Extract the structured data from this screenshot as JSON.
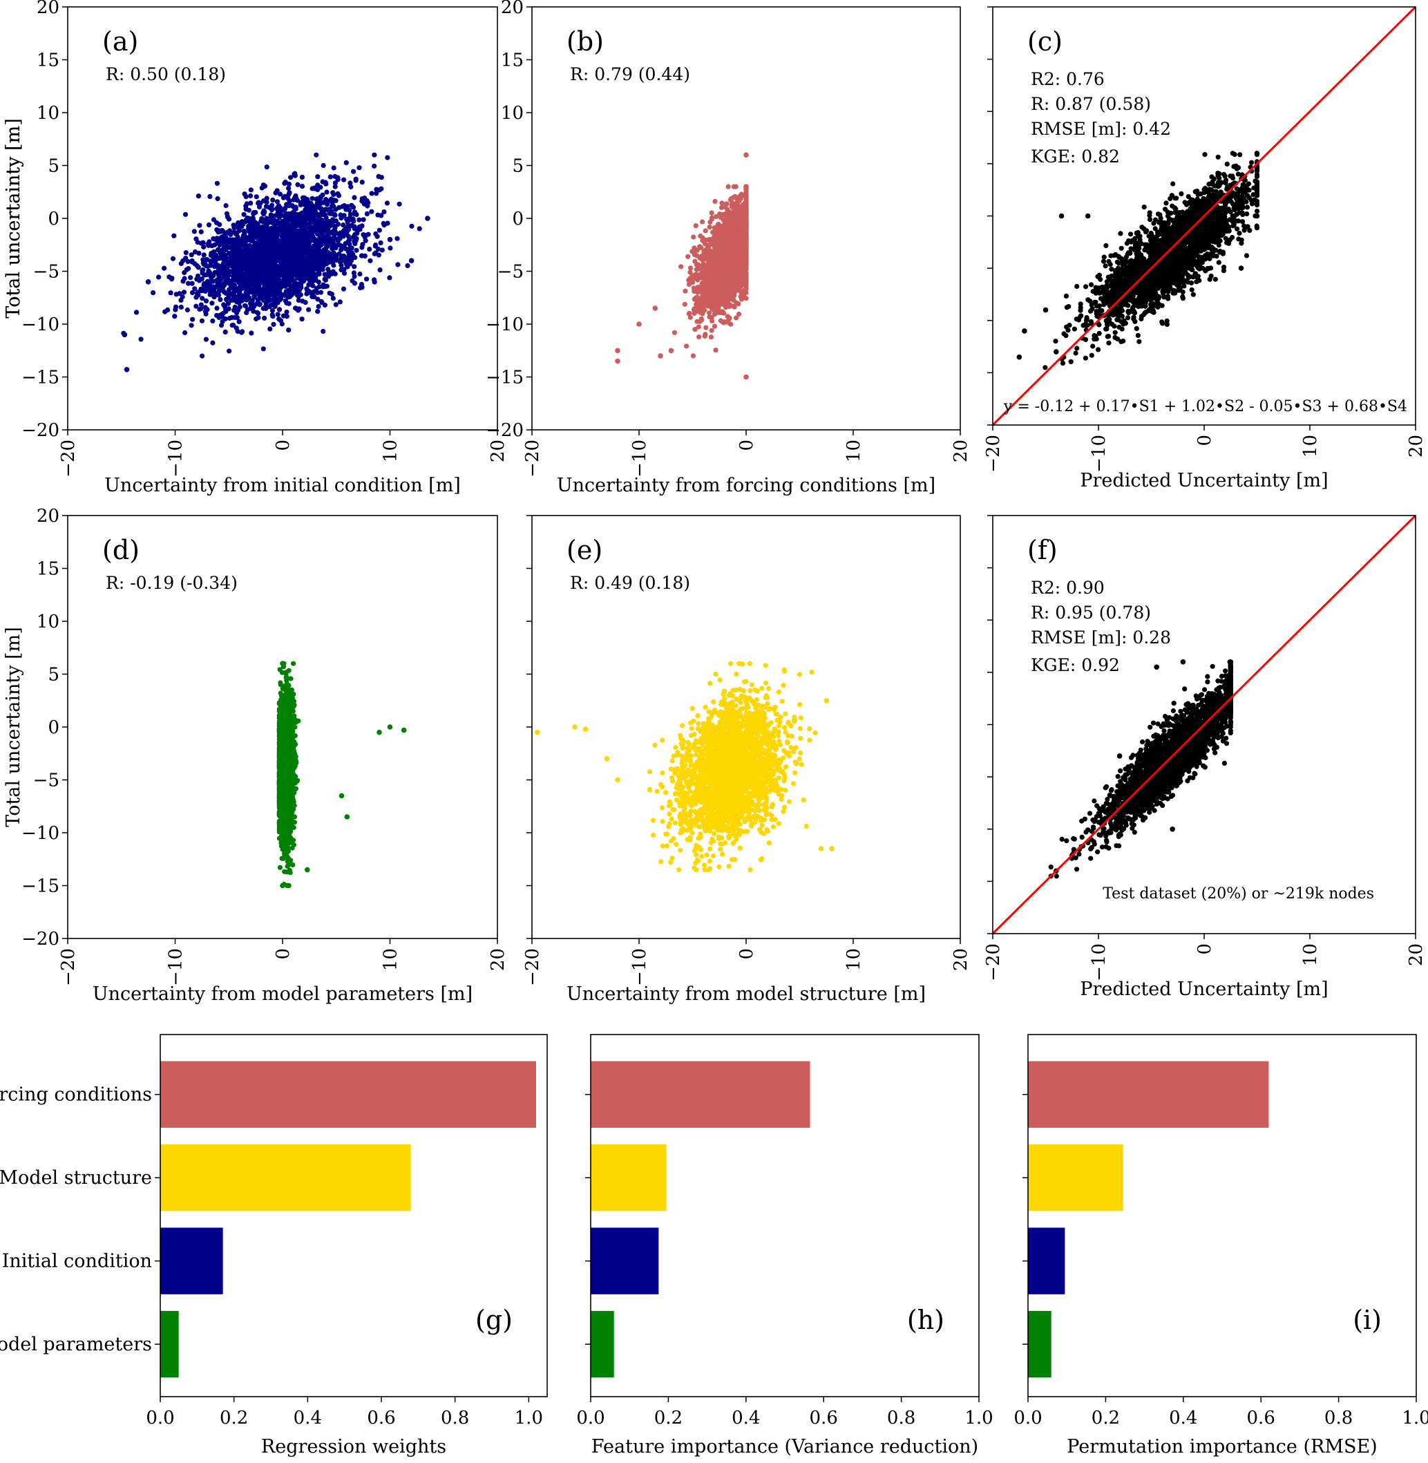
{
  "figure": {
    "yaxis_label": "Total uncertainty [m]"
  },
  "colors": {
    "initial_condition": "#00008b",
    "forcing_conditions": "#cd5c5c",
    "model_parameters": "#008000",
    "model_structure": "#ffd700",
    "prediction": "#000000",
    "identity_line": "#ff0000"
  },
  "chart_data": [
    {
      "id": "a",
      "type": "scatter",
      "panel_label": "(a)",
      "xlabel": "Uncertainty from initial condition [m]",
      "ylabel": "Total uncertainty [m]",
      "xlim": [
        -20,
        20
      ],
      "ylim": [
        -20,
        20
      ],
      "xticks": [
        "−20",
        "−10",
        "0",
        "10",
        "20"
      ],
      "yticks": [
        "20",
        "15",
        "10",
        "5",
        "0",
        "−5",
        "−10",
        "−15",
        "−20"
      ],
      "annotations": [
        "R: 0.50  (0.18)"
      ],
      "color": "#00008b",
      "cloud": {
        "center": [
          -0.5,
          -3.5
        ],
        "spread": [
          3.8,
          2.8
        ],
        "corr": 0.4,
        "y_range": [
          -15,
          6
        ],
        "x_range": [
          -15,
          14
        ]
      },
      "outliers": [
        [
          13.5,
          0
        ],
        [
          -14.5,
          -14.3
        ],
        [
          -14.7,
          -11
        ],
        [
          -12.5,
          -6
        ],
        [
          12,
          -4
        ],
        [
          10,
          -2
        ]
      ]
    },
    {
      "id": "b",
      "type": "scatter",
      "panel_label": "(b)",
      "xlabel": "Uncertainty from forcing conditions [m]",
      "ylabel": "Total uncertainty [m]",
      "xlim": [
        -20,
        20
      ],
      "ylim": [
        -20,
        20
      ],
      "xticks": [
        "−20",
        "−10",
        "0",
        "10",
        "20"
      ],
      "yticks": [
        "20",
        "15",
        "10",
        "5",
        "0",
        "−5",
        "−10",
        "−15",
        "−20"
      ],
      "annotations": [
        "R: 0.79  (0.44)"
      ],
      "color": "#cd5c5c",
      "cloud": {
        "center": [
          -1.5,
          -3.5
        ],
        "spread": [
          1.4,
          2.6
        ],
        "corr": 0.55,
        "y_range": [
          -13,
          3
        ],
        "x_range": [
          -9,
          0
        ]
      },
      "outliers": [
        [
          -12,
          -12.5
        ],
        [
          -12,
          -13.5
        ],
        [
          -10,
          -10
        ],
        [
          -8.5,
          -8.5
        ],
        [
          -8,
          -13
        ],
        [
          -7,
          -12.5
        ],
        [
          0,
          6
        ],
        [
          0,
          -15
        ]
      ]
    },
    {
      "id": "c",
      "type": "scatter",
      "panel_label": "(c)",
      "xlabel": "Predicted Uncertainty [m]",
      "ylabel": "",
      "xlim": [
        -20,
        20
      ],
      "ylim": [
        -20,
        20
      ],
      "xticks": [
        "−20",
        "−10",
        "0",
        "10",
        "20"
      ],
      "yticks": [],
      "annotations": [
        "R2: 0.76",
        "R: 0.87  (0.58)",
        "RMSE [m]: 0.42",
        "KGE: 0.82"
      ],
      "equation": "y = -0.12 + 0.17•S1 + 1.02•S2 - 0.05•S3 + 0.68•S4",
      "color": "#000000",
      "identity_line": true,
      "cloud": {
        "center": [
          -3,
          -3.5
        ],
        "spread": [
          3.6,
          3.4
        ],
        "corr": 0.82,
        "y_range": [
          -14.5,
          6
        ],
        "x_range": [
          -17,
          5
        ]
      },
      "outliers": [
        [
          -13.5,
          0
        ],
        [
          -11,
          0
        ],
        [
          -17.5,
          -13.5
        ],
        [
          -17,
          -11
        ],
        [
          -15,
          -9
        ],
        [
          5,
          0
        ],
        [
          3.5,
          -5
        ],
        [
          -14,
          -13
        ]
      ]
    },
    {
      "id": "d",
      "type": "scatter",
      "panel_label": "(d)",
      "xlabel": "Uncertainty from model parameters [m]",
      "ylabel": "Total uncertainty [m]",
      "xlim": [
        -20,
        20
      ],
      "ylim": [
        -20,
        20
      ],
      "xticks": [
        "−20",
        "−10",
        "0",
        "10",
        "20"
      ],
      "yticks": [
        "20",
        "15",
        "10",
        "5",
        "0",
        "−5",
        "−10",
        "−15",
        "−20"
      ],
      "annotations": [
        "R: -0.19  (-0.34)"
      ],
      "color": "#008000",
      "cloud": {
        "center": [
          0.3,
          -4
        ],
        "spread": [
          0.35,
          3.2
        ],
        "corr": 0.0,
        "y_range": [
          -15,
          6
        ],
        "x_range": [
          -0.3,
          2
        ]
      },
      "outliers": [
        [
          11.3,
          -0.3
        ],
        [
          10,
          0
        ],
        [
          9,
          -0.5
        ],
        [
          6,
          -8.5
        ],
        [
          5.5,
          -6.5
        ],
        [
          2.3,
          -13.5
        ],
        [
          0,
          6
        ],
        [
          0,
          -15
        ]
      ]
    },
    {
      "id": "e",
      "type": "scatter",
      "panel_label": "(e)",
      "xlabel": "Uncertainty from model structure [m]",
      "ylabel": "",
      "xlim": [
        -20,
        20
      ],
      "ylim": [
        -20,
        20
      ],
      "xticks": [
        "−20",
        "−10",
        "0",
        "10",
        "20"
      ],
      "yticks": [],
      "annotations": [
        "R: 0.49  (0.18)"
      ],
      "color": "#ffd700",
      "cloud": {
        "center": [
          -1.5,
          -4
        ],
        "spread": [
          2.4,
          3.2
        ],
        "corr": 0.3,
        "y_range": [
          -13.5,
          6
        ],
        "x_range": [
          -9,
          8
        ]
      },
      "outliers": [
        [
          -19.5,
          -0.5
        ],
        [
          -16,
          0
        ],
        [
          -15,
          -0.2
        ],
        [
          -13,
          -3
        ],
        [
          -12,
          -5
        ],
        [
          7.5,
          2.5
        ],
        [
          8,
          -11.5
        ],
        [
          7,
          -11.5
        ]
      ]
    },
    {
      "id": "f",
      "type": "scatter",
      "panel_label": "(f)",
      "xlabel": "Predicted Uncertainty [m]",
      "ylabel": "",
      "xlim": [
        -20,
        20
      ],
      "ylim": [
        -20,
        20
      ],
      "xticks": [
        "−20",
        "−10",
        "0",
        "10",
        "20"
      ],
      "yticks": [],
      "annotations": [
        "R2: 0.90",
        "R: 0.95  (0.78)",
        "RMSE [m]: 0.28",
        "KGE: 0.92"
      ],
      "footnote": "Test dataset (20%) or ~219k  nodes",
      "color": "#000000",
      "identity_line": true,
      "cloud": {
        "center": [
          -3,
          -3
        ],
        "spread": [
          3.2,
          3.4
        ],
        "corr": 0.9,
        "y_range": [
          -14.5,
          6
        ],
        "x_range": [
          -14.5,
          2.5
        ]
      },
      "outliers": [
        [
          -4.5,
          5.5
        ],
        [
          -2,
          6
        ],
        [
          -12.5,
          -12.5
        ],
        [
          -14,
          -14
        ],
        [
          -3,
          -10
        ],
        [
          -8,
          -3
        ]
      ]
    },
    {
      "id": "g",
      "type": "bar",
      "orientation": "horizontal",
      "panel_label": "(g)",
      "xlabel": "Regression weights",
      "xlim": [
        0,
        1.05
      ],
      "xticks": [
        "0.0",
        "0.2",
        "0.4",
        "0.6",
        "0.8",
        "1.0"
      ],
      "categories": [
        "Forcing conditions",
        "Model structure",
        "Initial condition",
        "Model parameters"
      ],
      "values": [
        1.02,
        0.68,
        0.17,
        0.05
      ],
      "colors": [
        "#cd5c5c",
        "#ffd700",
        "#00008b",
        "#008000"
      ]
    },
    {
      "id": "h",
      "type": "bar",
      "orientation": "horizontal",
      "panel_label": "(h)",
      "xlabel": "Feature importance (Variance reduction)",
      "xlim": [
        0,
        1.0
      ],
      "xticks": [
        "0.0",
        "0.2",
        "0.4",
        "0.6",
        "0.8",
        "1.0"
      ],
      "categories": [
        "Forcing conditions",
        "Model structure",
        "Initial condition",
        "Model parameters"
      ],
      "values": [
        0.565,
        0.195,
        0.175,
        0.06
      ],
      "colors": [
        "#cd5c5c",
        "#ffd700",
        "#00008b",
        "#008000"
      ]
    },
    {
      "id": "i",
      "type": "bar",
      "orientation": "horizontal",
      "panel_label": "(i)",
      "xlabel": "Permutation importance (RMSE)",
      "xlim": [
        0,
        1.0
      ],
      "xticks": [
        "0.0",
        "0.2",
        "0.4",
        "0.6",
        "0.8",
        "1.0"
      ],
      "categories": [
        "Forcing conditions",
        "Model structure",
        "Initial condition",
        "Model parameters"
      ],
      "values": [
        0.62,
        0.245,
        0.095,
        0.06
      ],
      "colors": [
        "#cd5c5c",
        "#ffd700",
        "#00008b",
        "#008000"
      ]
    }
  ]
}
